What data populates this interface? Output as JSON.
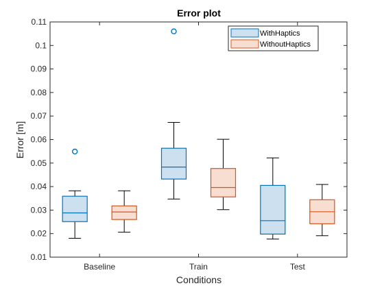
{
  "chart_data": {
    "type": "box",
    "title": "Error plot",
    "xlabel": "Conditions",
    "ylabel": "Error [m]",
    "ylim": [
      0.01,
      0.11
    ],
    "yticks": [
      "0.01",
      "0.02",
      "0.03",
      "0.04",
      "0.05",
      "0.06",
      "0.07",
      "0.08",
      "0.09",
      "0.1",
      "0.11"
    ],
    "categories": [
      "Baseline",
      "Train",
      "Test"
    ],
    "grid": false,
    "legend_position": "top-right",
    "series": [
      {
        "name": "WithHaptics",
        "stroke": "#0072BD",
        "fill": "#CCE0F0",
        "boxes": [
          {
            "min": 0.018,
            "q1": 0.0251,
            "median": 0.0288,
            "q3": 0.0359,
            "max": 0.0382,
            "outliers": [
              0.0549
            ]
          },
          {
            "min": 0.0347,
            "q1": 0.0432,
            "median": 0.0483,
            "q3": 0.0563,
            "max": 0.0673,
            "outliers": [
              0.106
            ]
          },
          {
            "min": 0.0177,
            "q1": 0.0198,
            "median": 0.0255,
            "q3": 0.0405,
            "max": 0.0522,
            "outliers": []
          }
        ]
      },
      {
        "name": "WithoutHaptics",
        "stroke": "#D95319",
        "fill": "#F8DDD1",
        "boxes": [
          {
            "min": 0.0206,
            "q1": 0.026,
            "median": 0.0292,
            "q3": 0.0318,
            "max": 0.0382,
            "outliers": []
          },
          {
            "min": 0.0302,
            "q1": 0.0356,
            "median": 0.0396,
            "q3": 0.0477,
            "max": 0.0601,
            "outliers": []
          },
          {
            "min": 0.0191,
            "q1": 0.0242,
            "median": 0.0293,
            "q3": 0.0344,
            "max": 0.0409,
            "outliers": []
          }
        ]
      }
    ]
  }
}
